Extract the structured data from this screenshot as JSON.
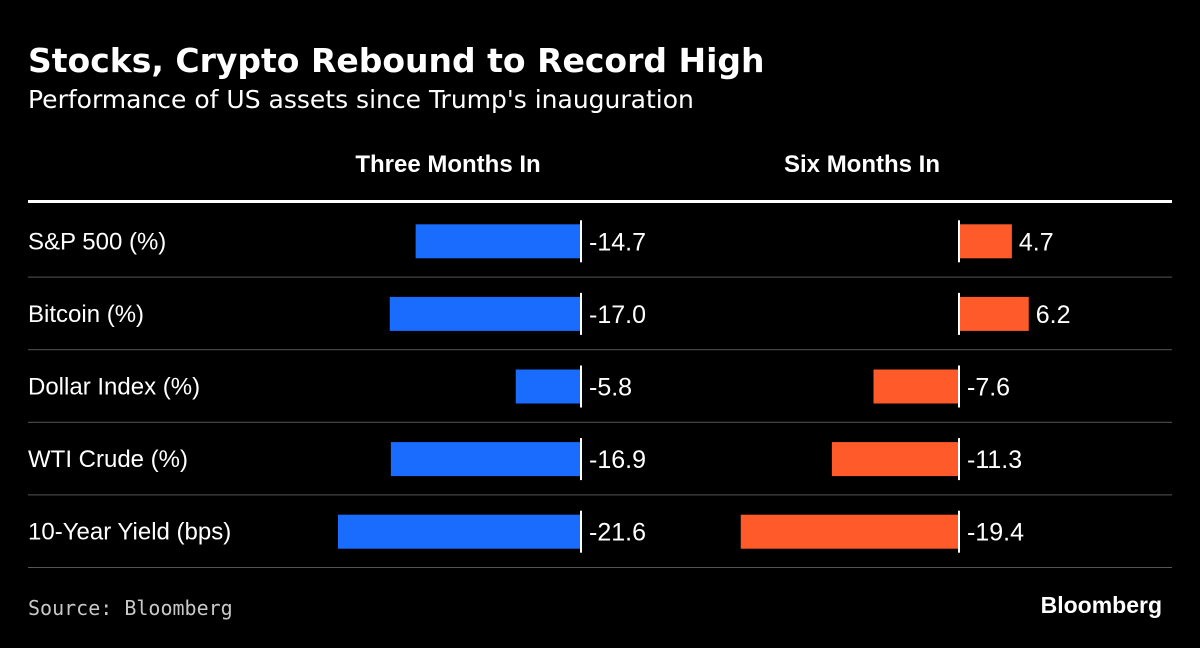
{
  "chart_data": {
    "type": "bar",
    "orientation": "horizontal",
    "title": "Stocks, Crypto Rebound to Record High",
    "subtitle": "Performance of US assets since Trump's inauguration",
    "categories": [
      "S&P 500 (%)",
      "Bitcoin (%)",
      "Dollar Index (%)",
      "WTI Crude (%)",
      "10-Year Yield (bps)"
    ],
    "series": [
      {
        "name": "Three Months In",
        "color": "#1a6cff",
        "values": [
          -14.7,
          -17.0,
          -5.8,
          -16.9,
          -21.6
        ],
        "labels": [
          "-14.7",
          "-17.0",
          "-5.8",
          "-16.9",
          "-21.6"
        ]
      },
      {
        "name": "Six Months In",
        "color": "#ff5a2a",
        "values": [
          4.7,
          6.2,
          -7.6,
          -11.3,
          -19.4
        ],
        "labels": [
          "4.7",
          "6.2",
          "-7.6",
          "-11.3",
          "-19.4"
        ]
      }
    ],
    "grid": false,
    "legend": "column headers"
  },
  "footer": {
    "source": "Source: Bloomberg",
    "brand": "Bloomberg"
  },
  "colors": {
    "background": "#000000",
    "text": "#ffffff",
    "divider": "#555555",
    "header_rule": "#ffffff"
  }
}
